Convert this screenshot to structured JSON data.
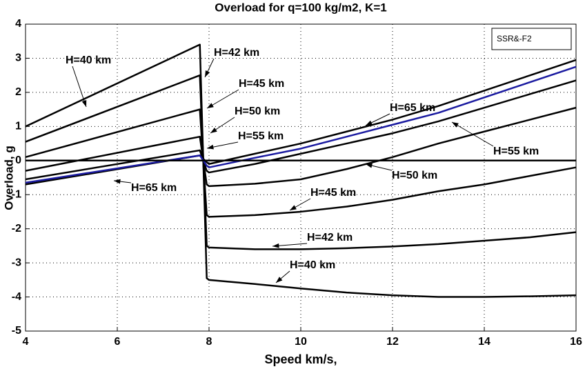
{
  "chart_data": {
    "type": "line",
    "title": "Overload for q=100 kg/m2, K=1",
    "xlabel": "Speed km/s,",
    "ylabel": "Overload, g",
    "xlim": [
      4,
      16
    ],
    "xticks": [
      4,
      6,
      8,
      10,
      12,
      14,
      16
    ],
    "ylim": [
      -5,
      4
    ],
    "yticks": [
      -5,
      -4,
      -3,
      -2,
      -1,
      0,
      1,
      2,
      3,
      4
    ],
    "grid": true,
    "legend_text": "SSR&-F2",
    "series": [
      {
        "color": "#000000",
        "x": [
          4,
          7.8,
          7.95,
          8,
          9,
          10,
          11,
          12,
          13,
          14,
          15,
          16
        ],
        "values": [
          1.0,
          3.4,
          -3.45,
          -3.5,
          -3.62,
          -3.75,
          -3.87,
          -3.95,
          -4.0,
          -4.0,
          -3.98,
          -3.95
        ]
      },
      {
        "color": "#000000",
        "x": [
          4,
          7.8,
          7.95,
          8,
          9,
          10,
          11,
          12,
          13,
          14,
          15,
          16
        ],
        "values": [
          0.55,
          2.5,
          -2.5,
          -2.55,
          -2.6,
          -2.6,
          -2.57,
          -2.52,
          -2.45,
          -2.35,
          -2.25,
          -2.1
        ]
      },
      {
        "color": "#000000",
        "x": [
          4,
          7.8,
          7.95,
          8,
          9,
          10,
          11,
          12,
          13,
          14,
          15,
          16
        ],
        "values": [
          0.1,
          1.5,
          -1.6,
          -1.65,
          -1.6,
          -1.5,
          -1.35,
          -1.15,
          -0.9,
          -0.7,
          -0.45,
          -0.2
        ]
      },
      {
        "color": "#000000",
        "x": [
          4,
          7.8,
          7.95,
          8,
          9,
          10,
          11,
          12,
          13,
          14,
          15,
          16
        ],
        "values": [
          -0.3,
          0.7,
          -0.7,
          -0.75,
          -0.68,
          -0.55,
          -0.25,
          0.1,
          0.5,
          0.85,
          1.2,
          1.55
        ]
      },
      {
        "color": "#000000",
        "x": [
          4,
          7.8,
          7.95,
          8,
          9,
          10,
          11,
          12,
          13,
          14,
          15,
          16
        ],
        "values": [
          -0.55,
          0.3,
          -0.3,
          -0.35,
          -0.1,
          0.2,
          0.5,
          0.8,
          1.15,
          1.55,
          1.95,
          2.35
        ]
      },
      {
        "color": "#000000",
        "x": [
          4,
          7.8,
          7.95,
          8,
          9,
          10,
          11,
          12,
          13,
          14,
          15,
          16
        ],
        "values": [
          -0.7,
          0.15,
          -0.05,
          -0.1,
          0.2,
          0.5,
          0.85,
          1.2,
          1.6,
          2.05,
          2.5,
          2.95
        ]
      },
      {
        "color": "#1a1aa0",
        "x": [
          4,
          7.8,
          7.95,
          8,
          9,
          10,
          11,
          12,
          13,
          14,
          15,
          16
        ],
        "values": [
          -0.65,
          0.15,
          -0.15,
          -0.2,
          0.08,
          0.35,
          0.7,
          1.05,
          1.4,
          1.85,
          2.3,
          2.75
        ]
      },
      {
        "color": "#000000",
        "x": [
          4,
          16
        ],
        "values": [
          0,
          0
        ]
      }
    ],
    "annotations": [
      "H=40 km",
      "H=42 km",
      "H=45 km",
      "H=50 km",
      "H=55 km",
      "H=65 km",
      "H=65 km",
      "H=55 km",
      "H=50 km",
      "H=45 km",
      "H=42 km",
      "H=40 km"
    ]
  }
}
